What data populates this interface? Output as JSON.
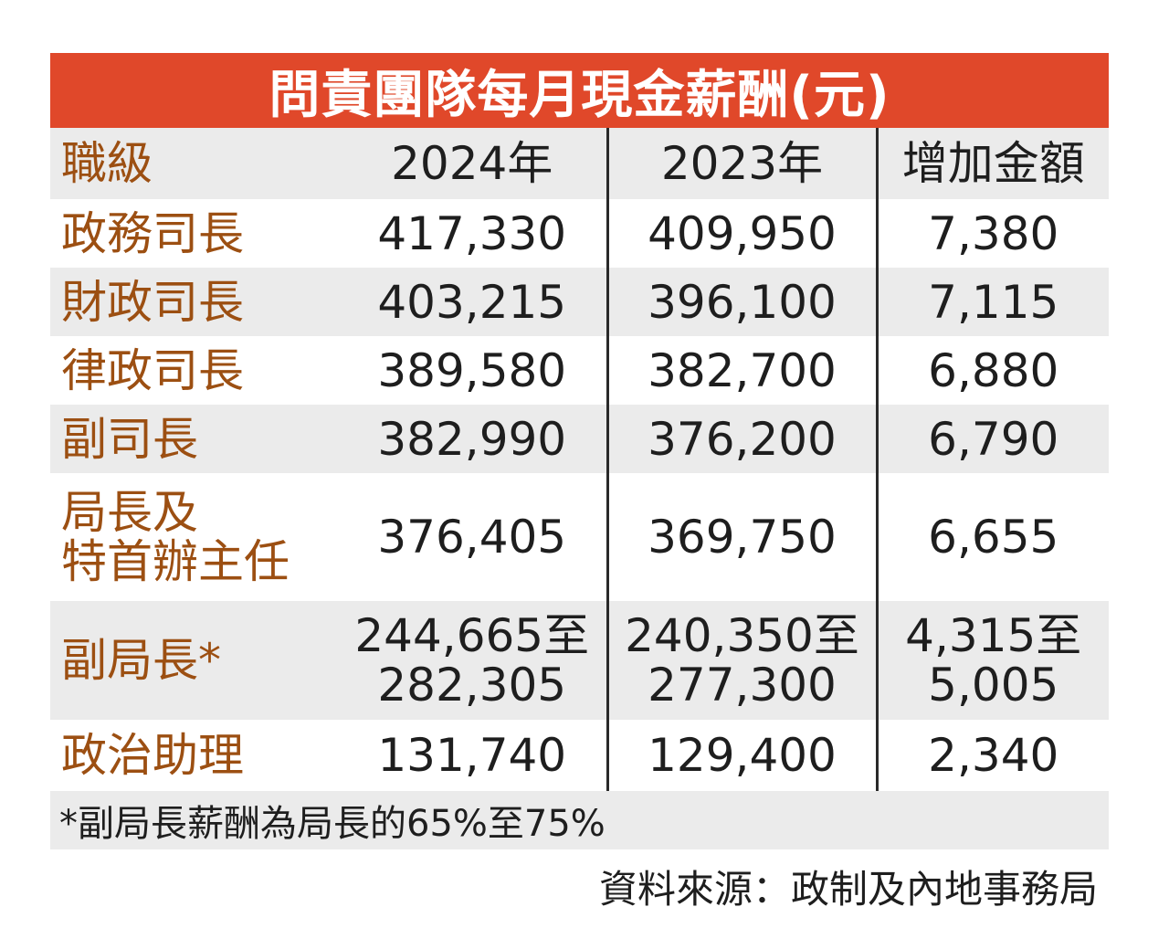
{
  "chart_data": {
    "type": "table",
    "title": "問責團隊每月現金薪酬(元)",
    "columns": [
      "職級",
      "2024年",
      "2023年",
      "增加金額"
    ],
    "rows": [
      {
        "label": "政務司長",
        "v2024": "417,330",
        "v2023": "409,950",
        "increase": "7,380"
      },
      {
        "label": "財政司長",
        "v2024": "403,215",
        "v2023": "396,100",
        "increase": "7,115"
      },
      {
        "label": "律政司長",
        "v2024": "389,580",
        "v2023": "382,700",
        "increase": "6,880"
      },
      {
        "label": "副司長",
        "v2024": "382,990",
        "v2023": "376,200",
        "increase": "6,790"
      },
      {
        "label_line1": "局長及",
        "label_line2": "特首辦主任",
        "v2024": "376,405",
        "v2023": "369,750",
        "increase": "6,655"
      },
      {
        "label": "副局長*",
        "v2024_line1": "244,665至",
        "v2024_line2": "282,305",
        "v2023_line1": "240,350至",
        "v2023_line2": "277,300",
        "increase_line1": "4,315至",
        "increase_line2": "5,005"
      },
      {
        "label": "政治助理",
        "v2024": "131,740",
        "v2023": "129,400",
        "increase": "2,340"
      }
    ],
    "footnote": "*副局長薪酬為局長的65%至75%",
    "source": "資料來源：政制及內地事務局"
  },
  "colors": {
    "title_bg": "#e0482a",
    "label_text": "#9c4f12",
    "row_shade": "#ebebeb"
  }
}
